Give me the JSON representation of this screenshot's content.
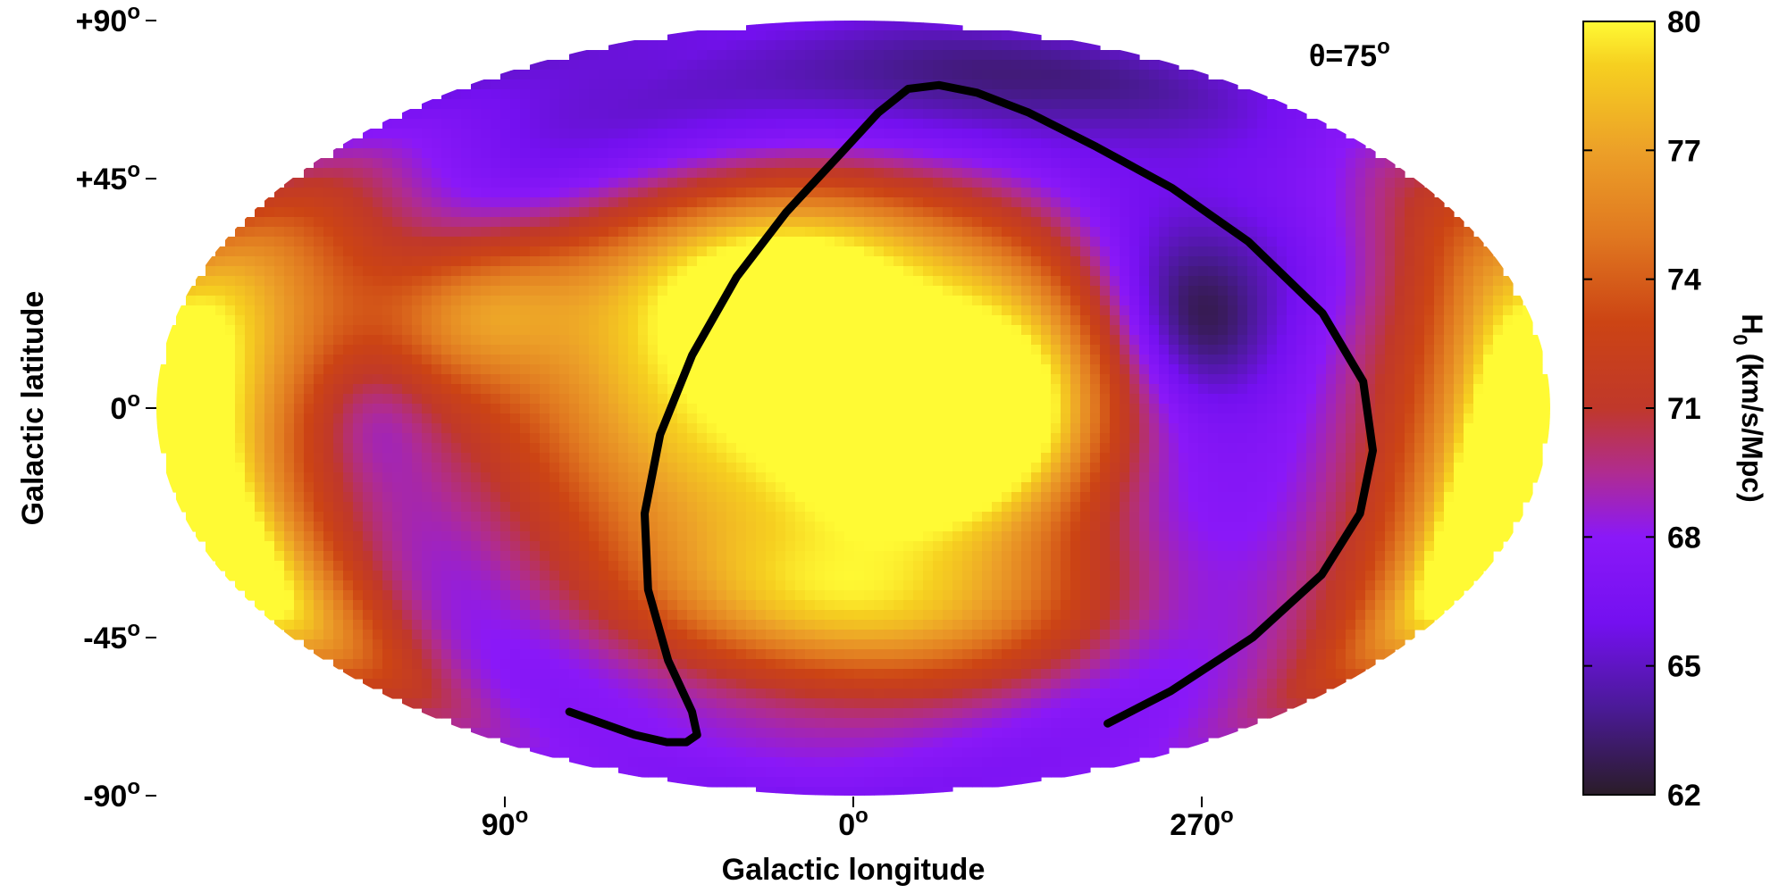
{
  "chart_data": {
    "type": "heatmap",
    "projection": "mollweide",
    "title": "",
    "annotation": {
      "symbol": "θ",
      "text": "=75",
      "sup": "o"
    },
    "xlabel": "Galactic longitude",
    "ylabel": "Galactic latitude",
    "x_ticks": [
      {
        "text": "90",
        "sup": "o",
        "lon": 90
      },
      {
        "text": "0",
        "sup": "o",
        "lon": 0
      },
      {
        "text": "270",
        "sup": "o",
        "lon": 270
      }
    ],
    "y_ticks": [
      {
        "text": "+90",
        "sup": "o",
        "lat": 90
      },
      {
        "text": "+45",
        "sup": "o",
        "lat": 45
      },
      {
        "text": "0",
        "sup": "o",
        "lat": 0
      },
      {
        "text": "-45",
        "sup": "o",
        "lat": -45
      },
      {
        "text": "-90",
        "sup": "o",
        "lat": -90
      }
    ],
    "colorbar": {
      "label": "H",
      "label_sub": "0",
      "label_rest": " (km/s/Mpc)",
      "range": [
        62,
        80
      ],
      "ticks": [
        "80",
        "77",
        "74",
        "71",
        "68",
        "65",
        "62"
      ],
      "stops": [
        {
          "value": 62,
          "color": "#2a1c28"
        },
        {
          "value": 64,
          "color": "#4a1a96"
        },
        {
          "value": 66,
          "color": "#7410f0"
        },
        {
          "value": 68,
          "color": "#8a18f8"
        },
        {
          "value": 69.5,
          "color": "#b02c90"
        },
        {
          "value": 71,
          "color": "#c0382a"
        },
        {
          "value": 73,
          "color": "#cc4414"
        },
        {
          "value": 75,
          "color": "#e07820"
        },
        {
          "value": 77,
          "color": "#eca028"
        },
        {
          "value": 79,
          "color": "#f6d020"
        },
        {
          "value": 80,
          "color": "#fffa34"
        }
      ]
    },
    "field": {
      "base_value": 66.5,
      "features": [
        {
          "lon": 30,
          "lat": 0,
          "value": 79,
          "w_lon": 48,
          "w_lat": 26
        },
        {
          "lon": 15,
          "lat": 28,
          "value": 75.5,
          "w_lon": 40,
          "w_lat": 14
        },
        {
          "lon": 340,
          "lat": -5,
          "value": 77,
          "w_lon": 22,
          "w_lat": 12
        },
        {
          "lon": 315,
          "lat": 5,
          "value": 74,
          "w_lon": 20,
          "w_lat": 18
        },
        {
          "lon": 320,
          "lat": -40,
          "value": 72,
          "w_lon": 35,
          "w_lat": 14
        },
        {
          "lon": 15,
          "lat": -38,
          "value": 73,
          "w_lon": 38,
          "w_lat": 12
        },
        {
          "lon": 150,
          "lat": 15,
          "value": 73,
          "w_lon": 25,
          "w_lat": 25
        },
        {
          "lon": 175,
          "lat": 0,
          "value": 73.5,
          "w_lon": 18,
          "w_lat": 30
        },
        {
          "lon": 165,
          "lat": -35,
          "value": 72.5,
          "w_lon": 20,
          "w_lat": 16
        },
        {
          "lon": 100,
          "lat": 18,
          "value": 72,
          "w_lon": 18,
          "w_lat": 10
        },
        {
          "lon": 200,
          "lat": -10,
          "value": 74,
          "w_lon": 25,
          "w_lat": 30
        },
        {
          "lon": 185,
          "lat": -15,
          "value": 75,
          "w_lon": 12,
          "w_lat": 18
        },
        {
          "lon": 90,
          "lat": 50,
          "value": 64.5,
          "w_lon": 70,
          "w_lat": 15
        },
        {
          "lon": 280,
          "lat": 70,
          "value": 63.5,
          "w_lon": 80,
          "w_lat": 12
        },
        {
          "lon": 270,
          "lat": 15,
          "value": 62.5,
          "w_lon": 14,
          "w_lat": 10
        },
        {
          "lon": 255,
          "lat": 28,
          "value": 64.5,
          "w_lon": 22,
          "w_lat": 10
        },
        {
          "lon": 125,
          "lat": 0,
          "value": 64,
          "w_lon": 12,
          "w_lat": 10
        },
        {
          "lon": 110,
          "lat": -20,
          "value": 66,
          "w_lon": 30,
          "w_lat": 15
        },
        {
          "lon": 30,
          "lat": -70,
          "value": 68,
          "w_lon": 60,
          "w_lat": 12
        }
      ]
    },
    "curve": {
      "color": "#000000",
      "points": [
        [
          118,
          -62
        ],
        [
          105,
          -68
        ],
        [
          95,
          -70
        ],
        [
          85,
          -70
        ],
        [
          75,
          -68
        ],
        [
          67,
          -62
        ],
        [
          63,
          -50
        ],
        [
          60,
          -35
        ],
        [
          56,
          -20
        ],
        [
          50,
          -5
        ],
        [
          42,
          10
        ],
        [
          32,
          25
        ],
        [
          20,
          38
        ],
        [
          5,
          50
        ],
        [
          -10,
          60
        ],
        [
          -25,
          66
        ],
        [
          -40,
          67
        ],
        [
          -55,
          65
        ],
        [
          -70,
          60
        ],
        [
          -85,
          52
        ],
        [
          -100,
          43
        ],
        [
          -113,
          32
        ],
        [
          -125,
          18
        ],
        [
          -132,
          5
        ],
        [
          -135,
          -8
        ],
        [
          -136,
          -20
        ],
        [
          -134,
          -32
        ],
        [
          -128,
          -45
        ],
        [
          -120,
          -57
        ],
        [
          -113,
          -65
        ]
      ]
    }
  }
}
